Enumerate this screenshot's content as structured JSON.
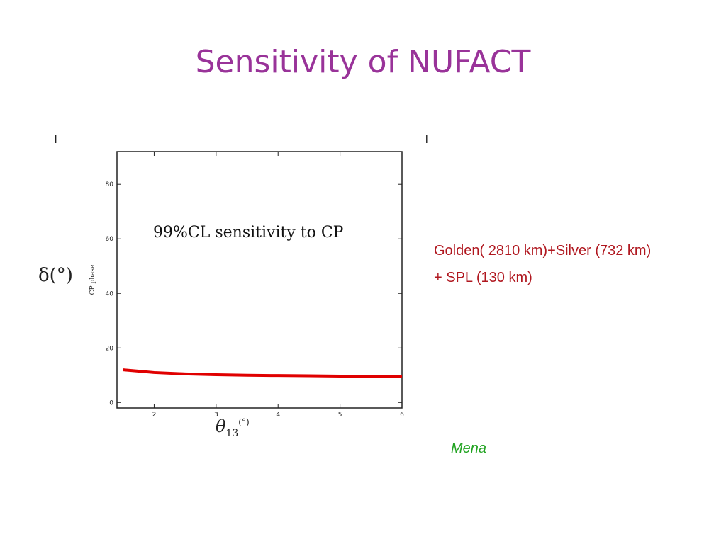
{
  "slide": {
    "title": "Sensitivity of NUFACT",
    "author": "Mena"
  },
  "corners": {
    "left": "_l",
    "right": "l_"
  },
  "legend": {
    "line1": "Golden( 2810 km)+Silver (732 km)",
    "line2": "+ SPL (130 km)",
    "color": "#b0171f"
  },
  "chart_data": {
    "type": "line",
    "annotation": "99%CL sensitivity to CP",
    "ylabel_small": "CP phase",
    "ylabel_large": "δ(°)",
    "xlabel_symbol": "θ",
    "xlabel_sub": "13",
    "xlabel_unit": "(°)",
    "xlim": [
      1.4,
      6
    ],
    "ylim": [
      -2,
      92
    ],
    "xticks": [
      2,
      3,
      4,
      5,
      6
    ],
    "yticks": [
      0,
      20,
      40,
      60,
      80
    ],
    "grid": false,
    "series": [
      {
        "color": "#e00000",
        "x": [
          1.5,
          1.75,
          2.0,
          2.5,
          3.0,
          3.5,
          4.0,
          4.5,
          5.0,
          5.5,
          6.0
        ],
        "y": [
          12.0,
          11.5,
          11.0,
          10.5,
          10.2,
          10.0,
          9.9,
          9.8,
          9.7,
          9.6,
          9.6
        ]
      }
    ]
  }
}
